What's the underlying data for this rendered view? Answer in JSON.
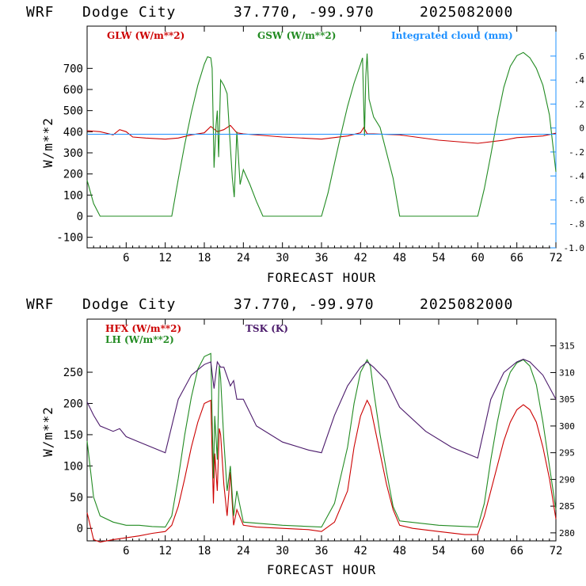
{
  "chart_data": [
    {
      "type": "line",
      "header": {
        "model": "WRF",
        "site": "Dodge City",
        "coords": "37.770, -99.970",
        "init": "2025082000"
      },
      "xlabel": "FORECAST HOUR",
      "ylabel": "W/m**2",
      "xlim": [
        0,
        72
      ],
      "ylim": [
        -150,
        900
      ],
      "xticks": [
        "6",
        "12",
        "18",
        "24",
        "30",
        "36",
        "42",
        "48",
        "54",
        "60",
        "66",
        "72"
      ],
      "yticks": [
        "-100",
        "0",
        "100",
        "200",
        "300",
        "400",
        "500",
        "600",
        "700"
      ],
      "y2ticks": [
        ".6",
        ".4",
        ".2",
        "0",
        "-.2",
        "-.4",
        "-.6",
        "-.8",
        "-1.0"
      ],
      "series": [
        {
          "name": "GLW (W/m**2)",
          "color": "#cc0000",
          "x": [
            0,
            2,
            4,
            5,
            6,
            7,
            9,
            12,
            14,
            16,
            18,
            19,
            20,
            21,
            22,
            23,
            24,
            30,
            36,
            40,
            42,
            42.5,
            43,
            44,
            48,
            54,
            60,
            64,
            66,
            70,
            72
          ],
          "values": [
            405,
            400,
            385,
            410,
            400,
            375,
            370,
            365,
            370,
            385,
            395,
            425,
            400,
            410,
            430,
            395,
            390,
            375,
            365,
            380,
            395,
            420,
            390,
            390,
            385,
            360,
            345,
            360,
            372,
            380,
            393
          ]
        },
        {
          "name": "GSW (W/m**2)",
          "color": "#228b22",
          "x": [
            0,
            1,
            2,
            5,
            8,
            12,
            13,
            14,
            15,
            16,
            17,
            18,
            18.5,
            19,
            19.2,
            19.5,
            19.8,
            20,
            20.2,
            20.5,
            21,
            21.5,
            22,
            22.3,
            22.6,
            23,
            23.5,
            24,
            25,
            26,
            27,
            28,
            30,
            33,
            36,
            37,
            38,
            39,
            40,
            41,
            42,
            42.3,
            42.6,
            42.8,
            43,
            43.3,
            44,
            45,
            46,
            47,
            48,
            49,
            50,
            54,
            57,
            60,
            61,
            62,
            63,
            64,
            65,
            66,
            67,
            68,
            69,
            70,
            71,
            72
          ],
          "values": [
            170,
            60,
            0,
            0,
            0,
            0,
            0,
            175,
            340,
            490,
            620,
            720,
            755,
            750,
            700,
            230,
            430,
            500,
            280,
            645,
            620,
            580,
            330,
            180,
            90,
            400,
            150,
            220,
            150,
            70,
            0,
            0,
            0,
            0,
            0,
            110,
            250,
            390,
            520,
            630,
            720,
            750,
            380,
            660,
            770,
            555,
            470,
            420,
            300,
            180,
            0,
            0,
            0,
            0,
            0,
            0,
            130,
            290,
            460,
            610,
            710,
            760,
            775,
            750,
            700,
            620,
            480,
            210
          ]
        },
        {
          "name": "Integrated cloud (mm)",
          "color": "#1e90ff",
          "x": [
            0,
            72
          ],
          "values": [
            388,
            388
          ]
        }
      ]
    },
    {
      "type": "line",
      "header": {
        "model": "WRF",
        "site": "Dodge City",
        "coords": "37.770, -99.970",
        "init": "2025082000"
      },
      "xlabel": "FORECAST HOUR",
      "ylabel": "W/m**2",
      "xlim": [
        0,
        72
      ],
      "ylim": [
        -20,
        335
      ],
      "y2lim": [
        278.5,
        320
      ],
      "xticks": [
        "6",
        "12",
        "18",
        "24",
        "30",
        "36",
        "42",
        "48",
        "54",
        "60",
        "66",
        "72"
      ],
      "yticks": [
        "0",
        "50",
        "100",
        "150",
        "200",
        "250"
      ],
      "y2ticks": [
        "280",
        "285",
        "290",
        "295",
        "300",
        "305",
        "310",
        "315"
      ],
      "series": [
        {
          "name": "HFX (W/m**2)",
          "color": "#cc0000",
          "axis": "left",
          "x": [
            0,
            1,
            2,
            4,
            6,
            8,
            10,
            12,
            13,
            14,
            15,
            16,
            17,
            18,
            19,
            19.4,
            19.6,
            20,
            20.3,
            20.5,
            21,
            21.5,
            22,
            22.5,
            23,
            24,
            26,
            30,
            34,
            36,
            38,
            40,
            41,
            42,
            43,
            43.5,
            44,
            45,
            46,
            47,
            48,
            50,
            54,
            58,
            60,
            61,
            62,
            63,
            64,
            65,
            66,
            67,
            68,
            69,
            70,
            71,
            72
          ],
          "values": [
            25,
            -18,
            -22,
            -18,
            -15,
            -12,
            -8,
            -5,
            5,
            35,
            80,
            130,
            170,
            200,
            205,
            40,
            120,
            60,
            160,
            150,
            70,
            20,
            90,
            5,
            30,
            5,
            2,
            0,
            -2,
            -5,
            10,
            60,
            130,
            180,
            205,
            195,
            170,
            120,
            70,
            30,
            5,
            0,
            -5,
            -10,
            -10,
            20,
            60,
            100,
            140,
            170,
            190,
            198,
            190,
            170,
            130,
            80,
            15
          ]
        },
        {
          "name": "LH (W/m**2)",
          "color": "#228b22",
          "axis": "left",
          "x": [
            0,
            1,
            2,
            4,
            6,
            8,
            10,
            12,
            13,
            14,
            15,
            16,
            17,
            18,
            19,
            19.4,
            19.6,
            20,
            20.3,
            20.5,
            21,
            21.5,
            22,
            22.5,
            23,
            24,
            30,
            36,
            38,
            40,
            41,
            42,
            43,
            43.5,
            44,
            45,
            46,
            47,
            48,
            54,
            60,
            61,
            62,
            63,
            64,
            65,
            66,
            67,
            68,
            69,
            70,
            71,
            72
          ],
          "values": [
            140,
            50,
            20,
            10,
            5,
            5,
            3,
            2,
            20,
            80,
            150,
            210,
            255,
            275,
            280,
            80,
            180,
            110,
            260,
            240,
            140,
            60,
            100,
            20,
            60,
            10,
            5,
            2,
            40,
            130,
            200,
            250,
            270,
            260,
            220,
            150,
            90,
            35,
            12,
            5,
            2,
            40,
            110,
            170,
            220,
            250,
            265,
            270,
            260,
            230,
            170,
            100,
            30
          ]
        },
        {
          "name": "TSK (K)",
          "color": "#4b1a6b",
          "axis": "right",
          "x": [
            0,
            1,
            2,
            4,
            5,
            6,
            8,
            12,
            14,
            16,
            18,
            19,
            19.5,
            20,
            20.5,
            21,
            22,
            22.5,
            23,
            24,
            26,
            30,
            34,
            36,
            38,
            40,
            42,
            43,
            44,
            46,
            48,
            52,
            56,
            60,
            62,
            64,
            66,
            67,
            68,
            70,
            72
          ],
          "values": [
            304.5,
            302,
            300,
            299,
            299.5,
            298,
            297,
            295,
            305,
            309.5,
            311.5,
            312,
            307,
            312,
            311,
            311,
            307.5,
            308.5,
            305,
            305,
            300,
            297,
            295.5,
            295,
            302,
            307.5,
            311,
            312,
            311,
            308.5,
            303.5,
            299,
            296,
            294,
            305,
            310,
            312,
            312.5,
            312,
            309.5,
            305
          ]
        }
      ]
    }
  ]
}
